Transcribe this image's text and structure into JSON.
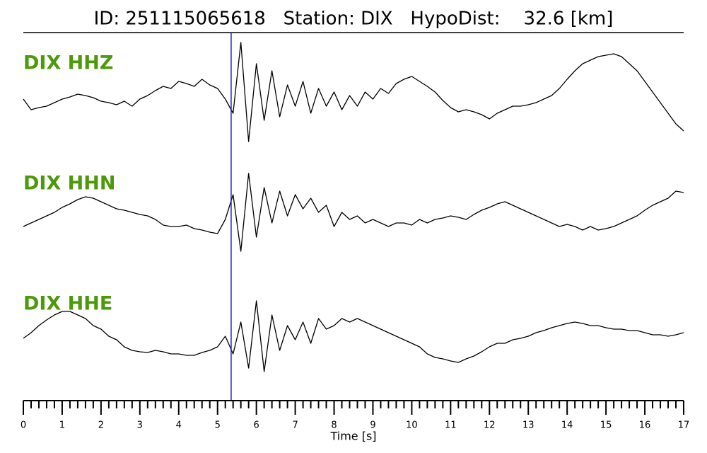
{
  "chart_data": {
    "type": "line",
    "title": "ID: 251115065618   Station: DIX   HypoDist:    32.6 [km]",
    "xlabel": "Time [s]",
    "xlim": [
      0,
      17
    ],
    "xticks": [
      0,
      1,
      2,
      3,
      4,
      5,
      6,
      7,
      8,
      9,
      10,
      11,
      12,
      13,
      14,
      15,
      16,
      17
    ],
    "xminor_step": 0.2,
    "ylim": [
      -85,
      85
    ],
    "pick_time": 5.35,
    "pick_color": "#1f1fd0",
    "label_color": "#4c9a0a",
    "x": [
      0,
      0.2,
      0.4,
      0.6,
      0.8,
      1,
      1.2,
      1.4,
      1.6,
      1.8,
      2,
      2.2,
      2.4,
      2.6,
      2.8,
      3,
      3.2,
      3.4,
      3.6,
      3.8,
      4,
      4.2,
      4.4,
      4.6,
      4.8,
      5,
      5.2,
      5.4,
      5.6,
      5.8,
      6,
      6.2,
      6.4,
      6.6,
      6.8,
      7,
      7.2,
      7.4,
      7.6,
      7.8,
      8,
      8.2,
      8.4,
      8.6,
      8.8,
      9,
      9.2,
      9.4,
      9.6,
      9.8,
      10,
      10.2,
      10.4,
      10.6,
      10.8,
      11,
      11.2,
      11.4,
      11.6,
      11.8,
      12,
      12.2,
      12.4,
      12.6,
      12.8,
      13,
      13.2,
      13.4,
      13.6,
      13.8,
      14,
      14.2,
      14.4,
      14.6,
      14.8,
      15,
      15.2,
      15.4,
      15.6,
      15.8,
      16,
      16.2,
      16.4,
      16.6,
      16.8,
      17
    ],
    "series": [
      {
        "name": "DIX HHZ",
        "color": "#000000",
        "values": [
          5,
          -10,
          -7,
          -5,
          0,
          5,
          8,
          12,
          10,
          7,
          2,
          0,
          -3,
          2,
          -5,
          5,
          10,
          17,
          23,
          20,
          30,
          27,
          23,
          33,
          25,
          20,
          5,
          -15,
          85,
          -55,
          55,
          -25,
          45,
          -20,
          25,
          -5,
          30,
          -15,
          20,
          -5,
          15,
          -10,
          10,
          -5,
          15,
          5,
          20,
          13,
          27,
          33,
          37,
          30,
          23,
          15,
          3,
          -7,
          -13,
          -10,
          -13,
          -17,
          -23,
          -15,
          -10,
          -5,
          -5,
          -3,
          0,
          5,
          10,
          20,
          33,
          45,
          55,
          60,
          65,
          67,
          69,
          65,
          55,
          45,
          30,
          15,
          0,
          -15,
          -30,
          -40
        ]
      },
      {
        "name": "DIX HHN",
        "color": "#000000",
        "values": [
          -5,
          0,
          5,
          10,
          15,
          22,
          27,
          33,
          37,
          35,
          30,
          25,
          20,
          18,
          15,
          12,
          10,
          5,
          -3,
          -5,
          -5,
          -3,
          -8,
          -10,
          -13,
          -15,
          5,
          40,
          -40,
          70,
          -20,
          50,
          0,
          45,
          10,
          40,
          20,
          35,
          15,
          25,
          -5,
          15,
          5,
          10,
          0,
          5,
          0,
          -5,
          0,
          0,
          -3,
          5,
          0,
          5,
          7,
          10,
          8,
          5,
          12,
          18,
          22,
          27,
          30,
          25,
          20,
          15,
          10,
          5,
          0,
          -5,
          -2,
          -5,
          -10,
          -5,
          -10,
          -8,
          -5,
          0,
          5,
          10,
          18,
          25,
          30,
          35,
          45,
          43
        ]
      },
      {
        "name": "DIX HHE",
        "color": "#000000",
        "values": [
          7,
          15,
          25,
          33,
          40,
          45,
          45,
          40,
          35,
          25,
          20,
          10,
          5,
          -5,
          -10,
          -12,
          -13,
          -10,
          -12,
          -15,
          -15,
          -17,
          -17,
          -13,
          -10,
          -5,
          10,
          -15,
          30,
          -35,
          60,
          -40,
          40,
          -10,
          25,
          5,
          30,
          0,
          35,
          20,
          25,
          35,
          30,
          35,
          30,
          25,
          20,
          15,
          10,
          5,
          0,
          -5,
          -15,
          -20,
          -22,
          -25,
          -27,
          -22,
          -18,
          -12,
          -5,
          0,
          0,
          5,
          7,
          10,
          15,
          18,
          22,
          25,
          28,
          30,
          28,
          25,
          25,
          22,
          20,
          20,
          18,
          18,
          15,
          12,
          12,
          10,
          12,
          15
        ]
      }
    ]
  }
}
